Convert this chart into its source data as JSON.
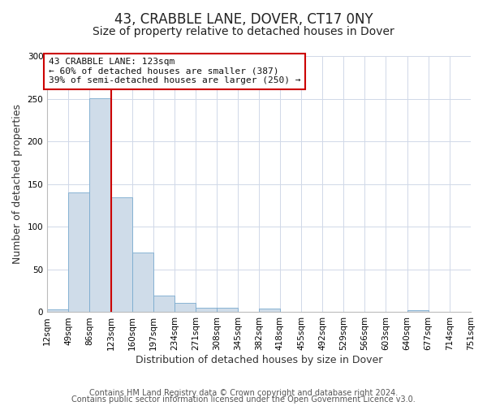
{
  "title": "43, CRABBLE LANE, DOVER, CT17 0NY",
  "subtitle": "Size of property relative to detached houses in Dover",
  "xlabel": "Distribution of detached houses by size in Dover",
  "ylabel": "Number of detached properties",
  "bin_edges": [
    12,
    49,
    86,
    123,
    160,
    197,
    234,
    271,
    308,
    345,
    382,
    418,
    455,
    492,
    529,
    566,
    603,
    640,
    677,
    714,
    751
  ],
  "bin_heights": [
    3,
    140,
    251,
    135,
    70,
    19,
    11,
    5,
    5,
    0,
    4,
    0,
    0,
    0,
    0,
    0,
    0,
    2,
    0,
    0
  ],
  "bar_facecolor": "#cfdce9",
  "bar_edgecolor": "#7aabcf",
  "vline_x": 123,
  "vline_color": "#cc0000",
  "annotation_text": "43 CRABBLE LANE: 123sqm\n← 60% of detached houses are smaller (387)\n39% of semi-detached houses are larger (250) →",
  "annotation_box_edgecolor": "#cc0000",
  "annotation_box_facecolor": "#ffffff",
  "ylim": [
    0,
    300
  ],
  "yticks": [
    0,
    50,
    100,
    150,
    200,
    250,
    300
  ],
  "tick_labels": [
    "12sqm",
    "49sqm",
    "86sqm",
    "123sqm",
    "160sqm",
    "197sqm",
    "234sqm",
    "271sqm",
    "308sqm",
    "345sqm",
    "382sqm",
    "418sqm",
    "455sqm",
    "492sqm",
    "529sqm",
    "566sqm",
    "603sqm",
    "640sqm",
    "677sqm",
    "714sqm",
    "751sqm"
  ],
  "footer1": "Contains HM Land Registry data © Crown copyright and database right 2024.",
  "footer2": "Contains public sector information licensed under the Open Government Licence v3.0.",
  "bg_color": "#ffffff",
  "grid_color": "#d0d8e8",
  "title_fontsize": 12,
  "subtitle_fontsize": 10,
  "axis_label_fontsize": 9,
  "tick_fontsize": 7.5,
  "footer_fontsize": 7,
  "annot_fontsize": 8
}
